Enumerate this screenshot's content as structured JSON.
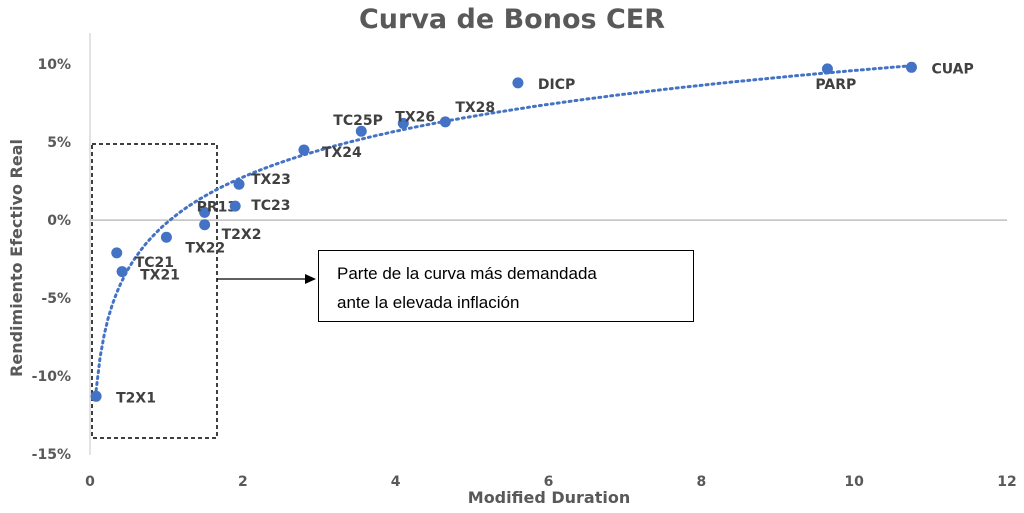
{
  "chart_data": {
    "type": "scatter",
    "title": "Curva de Bonos CER",
    "xlabel": "Modified Duration",
    "ylabel": "Rendimiento Efectivo Real",
    "xlim": [
      0,
      12
    ],
    "ylim": [
      -15,
      12
    ],
    "x_ticks": [
      "0",
      "2",
      "4",
      "6",
      "8",
      "10",
      "12"
    ],
    "y_ticks": [
      "10%",
      "5%",
      "0%",
      "-5%",
      "-10%",
      "-15%"
    ],
    "grid": false,
    "marker_color": "#4472C4",
    "trendline": "logarithmic, dotted",
    "points": [
      {
        "label": "T2X1",
        "x": 0.08,
        "y": -11.3
      },
      {
        "label": "TC21",
        "x": 0.35,
        "y": -2.1
      },
      {
        "label": "TX21",
        "x": 0.42,
        "y": -3.3
      },
      {
        "label": "TX22",
        "x": 1.0,
        "y": -1.1
      },
      {
        "label": "PR13",
        "x": 1.5,
        "y": 0.5
      },
      {
        "label": "T2X2",
        "x": 1.5,
        "y": -0.3
      },
      {
        "label": "TC23",
        "x": 1.9,
        "y": 0.9
      },
      {
        "label": "TX23",
        "x": 1.95,
        "y": 2.3
      },
      {
        "label": "TX24",
        "x": 2.8,
        "y": 4.5
      },
      {
        "label": "TC25P",
        "x": 3.55,
        "y": 5.7
      },
      {
        "label": "TX26",
        "x": 4.1,
        "y": 6.2
      },
      {
        "label": "TX28",
        "x": 4.65,
        "y": 6.3
      },
      {
        "label": "DICP",
        "x": 5.6,
        "y": 8.8
      },
      {
        "label": "PARP",
        "x": 9.65,
        "y": 9.7
      },
      {
        "label": "CUAP",
        "x": 10.75,
        "y": 9.8
      }
    ],
    "annotation": {
      "text_line1": "Parte de la curva más demandada",
      "text_line2": "ante la elevada inflación"
    }
  }
}
